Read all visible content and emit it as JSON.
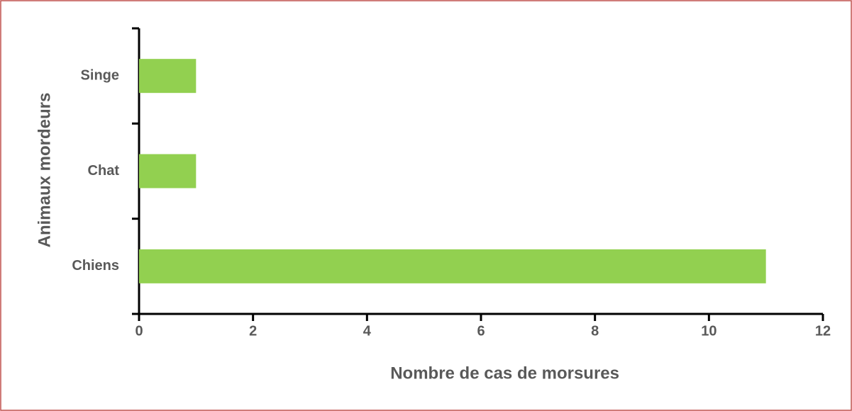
{
  "chart_data": {
    "type": "barh",
    "categories": [
      "Chiens",
      "Chat",
      "Singe"
    ],
    "values": [
      11,
      1,
      1
    ],
    "color": "#92d050",
    "xlabel": "Nombre de cas de morsures",
    "ylabel": "Animaux mordeurs",
    "xlim": [
      0,
      12
    ],
    "xticks": [
      0,
      2,
      4,
      6,
      8,
      10,
      12
    ]
  }
}
